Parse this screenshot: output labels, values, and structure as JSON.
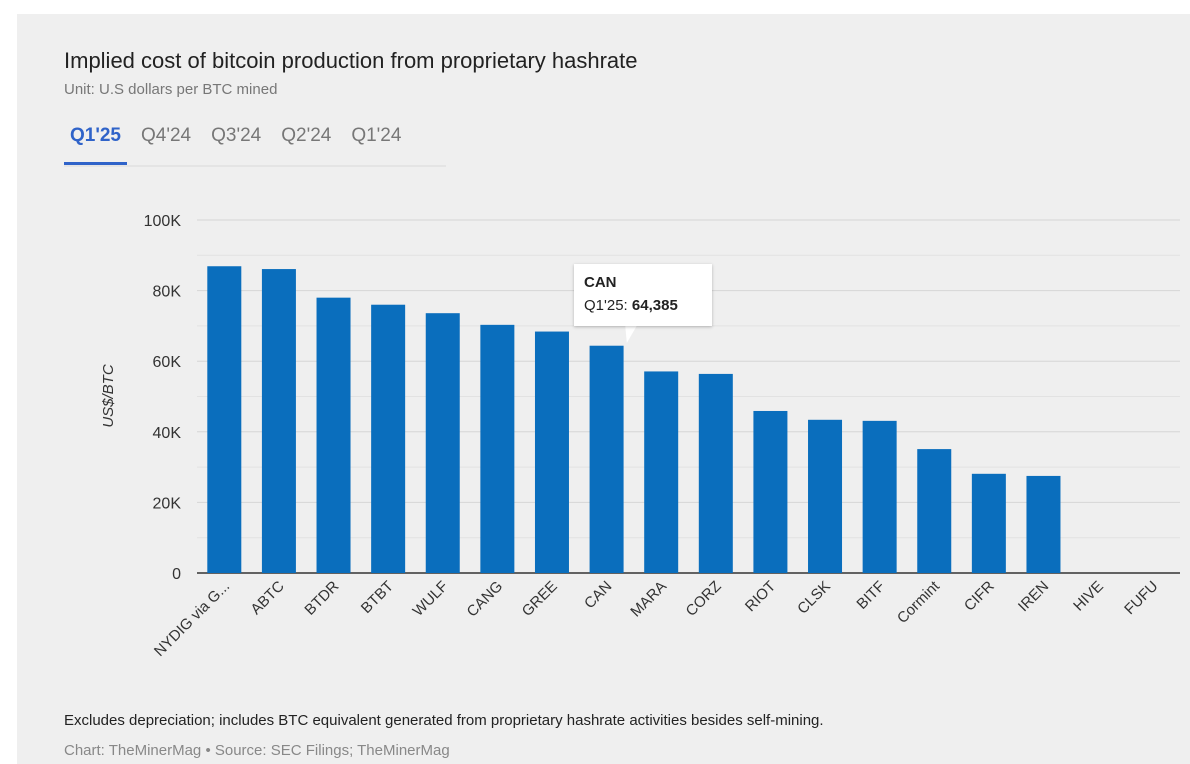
{
  "header": {
    "title": "Implied cost of bitcoin production from proprietary hashrate",
    "subtitle": "Unit: U.S dollars per BTC mined"
  },
  "tabs": [
    {
      "label": "Q1'25",
      "active": true
    },
    {
      "label": "Q4'24",
      "active": false
    },
    {
      "label": "Q3'24",
      "active": false
    },
    {
      "label": "Q2'24",
      "active": false
    },
    {
      "label": "Q1'24",
      "active": false
    }
  ],
  "tooltip": {
    "name": "CAN",
    "series": "Q1'25: ",
    "value": "64,385"
  },
  "footer": {
    "note": "Excludes depreciation; includes BTC equivalent generated from proprietary hashrate activities besides self-mining.",
    "credit": "Chart: TheMinerMag • Source: SEC Filings; TheMinerMag"
  },
  "colors": {
    "bar": "#0a6ebd",
    "accent": "#2f63c9",
    "background": "#efefef"
  },
  "chart_data": {
    "type": "bar",
    "title": "Implied cost of bitcoin production from proprietary hashrate",
    "subtitle": "Unit: U.S dollars per BTC mined",
    "xlabel": "",
    "ylabel": "US$/BTC",
    "ylim": [
      0,
      100000
    ],
    "yticks": [
      0,
      20000,
      40000,
      60000,
      80000,
      100000
    ],
    "ytick_labels": [
      "0",
      "20K",
      "40K",
      "60K",
      "80K",
      "100K"
    ],
    "grid": true,
    "categories": [
      "NYDIG via G...",
      "ABTC",
      "BTDR",
      "BTBT",
      "WULF",
      "CANG",
      "GREE",
      "CAN",
      "MARA",
      "CORZ",
      "RIOT",
      "CLSK",
      "BITF",
      "Cormint",
      "CIFR",
      "IREN",
      "HIVE",
      "FUFU"
    ],
    "series": [
      {
        "name": "Q1'25",
        "values": [
          86900,
          86100,
          78000,
          76000,
          73600,
          70300,
          68400,
          64385,
          57100,
          56400,
          45900,
          43400,
          43100,
          35100,
          28100,
          27500,
          null,
          null
        ]
      }
    ]
  }
}
